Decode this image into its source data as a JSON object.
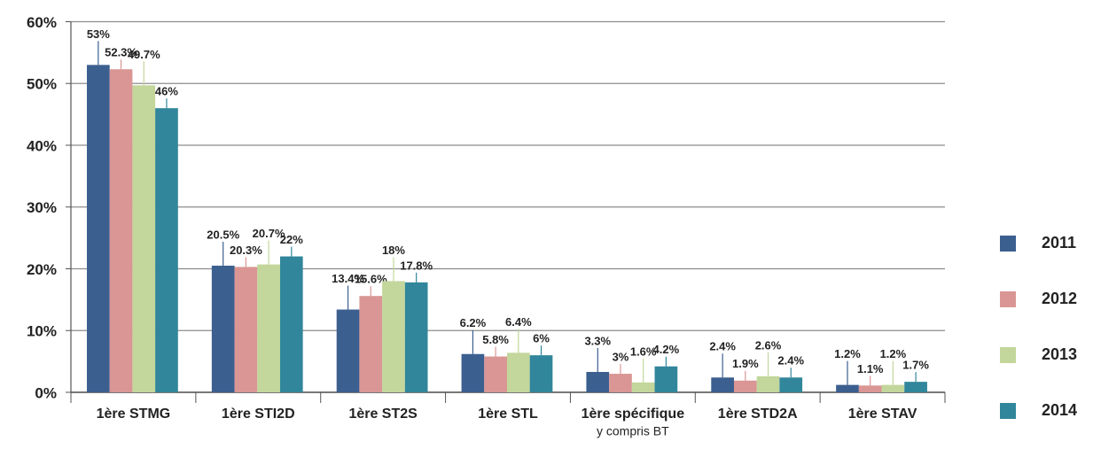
{
  "chart_data": {
    "type": "bar",
    "categories": [
      "1ère STMG",
      "1ère STI2D",
      "1ère ST2S",
      "1ère STL",
      "1ère spécifique",
      "1ère STD2A",
      "1ère STAV"
    ],
    "annotations": [
      {
        "category": 4,
        "text": "y compris BT"
      }
    ],
    "series": [
      {
        "name": "2011",
        "color": "#3b5f8f",
        "values": [
          53,
          20.5,
          13.4,
          6.2,
          3.3,
          2.4,
          1.2
        ],
        "value_labels": [
          "53%",
          "20.5%",
          "13.4%",
          "6.2%",
          "3.3%",
          "2.4%",
          "1.2%"
        ]
      },
      {
        "name": "2012",
        "color": "#d99694",
        "values": [
          52.3,
          20.3,
          15.6,
          5.8,
          3,
          1.9,
          1.1
        ],
        "value_labels": [
          "52.3%",
          "20.3%",
          "15.6%",
          "5.8%",
          "3%",
          "1.9%",
          "1.1%"
        ]
      },
      {
        "name": "2013",
        "color": "#c3d69b",
        "values": [
          49.7,
          20.7,
          18,
          6.4,
          1.6,
          2.6,
          1.2
        ],
        "value_labels": [
          "49.7%",
          "20.7%",
          "18%",
          "6.4%",
          "1.6%",
          "2.6%",
          "1.2%"
        ]
      },
      {
        "name": "2014",
        "color": "#31869b",
        "values": [
          46,
          22,
          17.8,
          6,
          4.2,
          2.4,
          1.7
        ],
        "value_labels": [
          "46%",
          "22%",
          "17.8%",
          "6%",
          "4.2%",
          "2.4%",
          "1.7%"
        ]
      }
    ],
    "ylim": [
      0,
      60
    ],
    "yticks": [
      {
        "value": 0,
        "label": "0%"
      },
      {
        "value": 10,
        "label": "10%"
      },
      {
        "value": 20,
        "label": "20%"
      },
      {
        "value": 30,
        "label": "30%"
      },
      {
        "value": 40,
        "label": "40%"
      },
      {
        "value": 50,
        "label": "50%"
      },
      {
        "value": 60,
        "label": "60%"
      }
    ],
    "grid": true,
    "legend": "right"
  }
}
